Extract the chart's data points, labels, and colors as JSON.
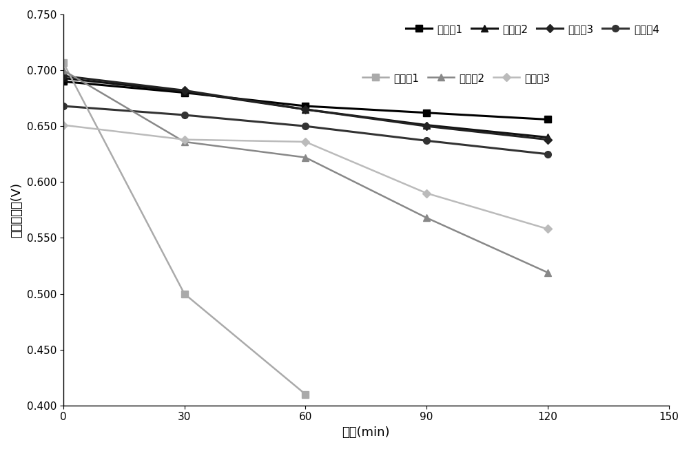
{
  "x": [
    0,
    30,
    60,
    90,
    120
  ],
  "series": [
    {
      "label": "实施兣1",
      "values": [
        0.69,
        0.68,
        0.668,
        0.662,
        0.656
      ],
      "color": "#000000",
      "marker": "s",
      "linewidth": 2.2,
      "markersize": 7,
      "linestyle": "-"
    },
    {
      "label": "实施兣2",
      "values": [
        0.693,
        0.681,
        0.665,
        0.651,
        0.64
      ],
      "color": "#111111",
      "marker": "^",
      "linewidth": 2.2,
      "markersize": 7,
      "linestyle": "-"
    },
    {
      "label": "实施兣3",
      "values": [
        0.695,
        0.682,
        0.665,
        0.65,
        0.638
      ],
      "color": "#222222",
      "marker": "D",
      "linewidth": 2.2,
      "markersize": 6,
      "linestyle": "-"
    },
    {
      "label": "实施兣4",
      "values": [
        0.668,
        0.66,
        0.65,
        0.637,
        0.625
      ],
      "color": "#333333",
      "marker": "o",
      "linewidth": 2.2,
      "markersize": 7,
      "linestyle": "-"
    },
    {
      "label": "对比兣1",
      "values": [
        0.707,
        0.5,
        0.41,
        null,
        null
      ],
      "color": "#aaaaaa",
      "marker": "s",
      "linewidth": 1.8,
      "markersize": 7,
      "linestyle": "-"
    },
    {
      "label": "对比兣2",
      "values": [
        0.7,
        0.636,
        0.622,
        0.568,
        0.519
      ],
      "color": "#888888",
      "marker": "^",
      "linewidth": 1.8,
      "markersize": 7,
      "linestyle": "-"
    },
    {
      "label": "对比兣3",
      "values": [
        0.651,
        0.638,
        0.636,
        0.59,
        0.558
      ],
      "color": "#bbbbbb",
      "marker": "D",
      "linewidth": 1.8,
      "markersize": 6,
      "linestyle": "-"
    }
  ],
  "xlabel": "时间(min)",
  "ylabel": "单电池电压(V)",
  "xlim": [
    0,
    150
  ],
  "ylim": [
    0.4,
    0.75
  ],
  "xticks": [
    0,
    30,
    60,
    90,
    120,
    150
  ],
  "yticks": [
    0.4,
    0.45,
    0.5,
    0.55,
    0.6,
    0.65,
    0.7,
    0.75
  ],
  "axis_fontsize": 13,
  "tick_fontsize": 11,
  "legend_fontsize": 11,
  "figsize": [
    10.0,
    6.52
  ],
  "dpi": 100
}
